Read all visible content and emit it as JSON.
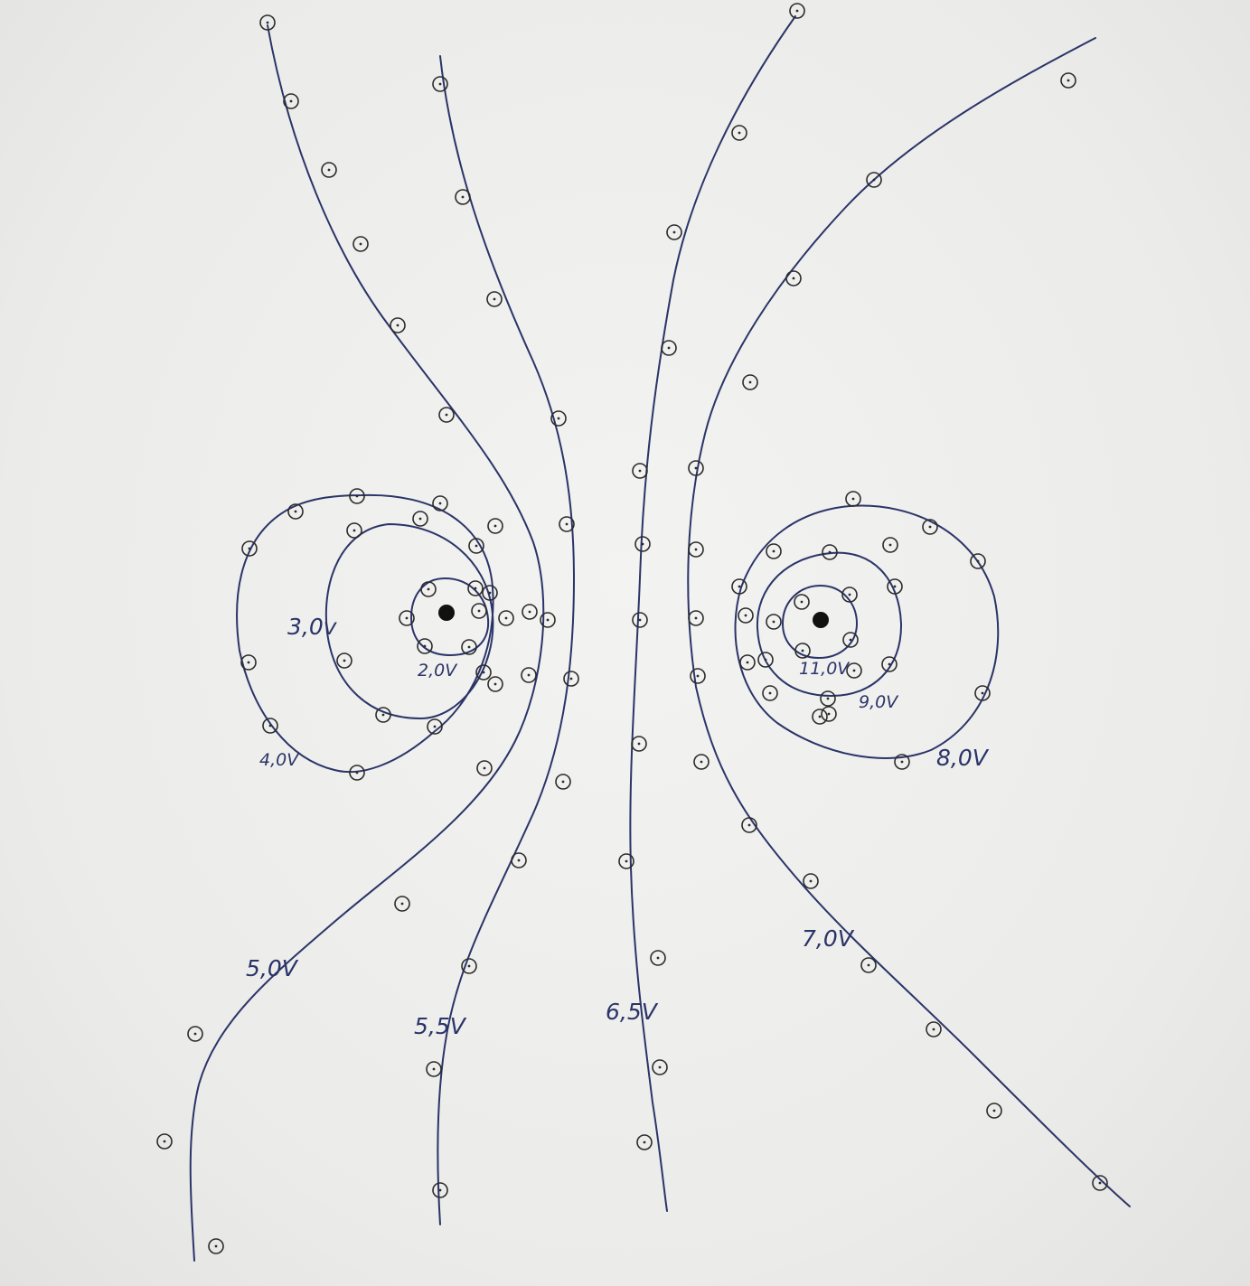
{
  "colors": {
    "ink": "#2b3468",
    "pencil": "#2b2b2b",
    "paper": "#efefed",
    "electrode": "#111111"
  },
  "electrodes": [
    {
      "name": "left-electrode"
    },
    {
      "name": "right-electrode"
    }
  ],
  "equipotential_labels": [
    {
      "id": "v2",
      "text": "2,0V"
    },
    {
      "id": "v3",
      "text": "3,0v"
    },
    {
      "id": "v4",
      "text": "4,0V"
    },
    {
      "id": "v5",
      "text": "5,0V"
    },
    {
      "id": "v55",
      "text": "5,5V"
    },
    {
      "id": "v65",
      "text": "6,5V"
    },
    {
      "id": "v7",
      "text": "7,0V"
    },
    {
      "id": "v8",
      "text": "8,0V"
    },
    {
      "id": "v9",
      "text": "9,0V"
    },
    {
      "id": "v11",
      "text": "11,0V"
    }
  ]
}
